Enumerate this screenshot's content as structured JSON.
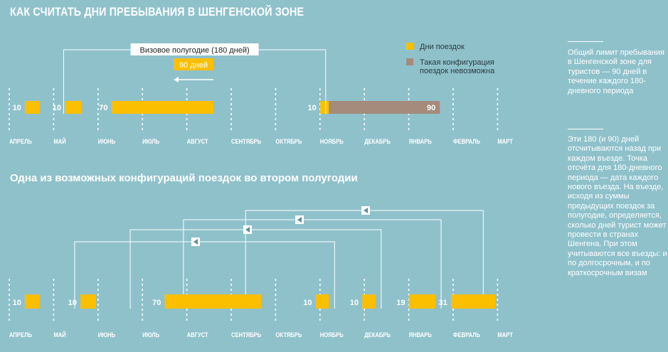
{
  "title": "КАК СЧИТАТЬ ДНИ ПРЕБЫВАНИЯ В ШЕНГЕНСКОЙ ЗОНЕ",
  "subtitle": "Одна из возможных конфигураций поездок во втором полугодии",
  "colors": {
    "background": "#8fc1cb",
    "trip": "#fcbf00",
    "impossible": "#a48b7b",
    "text": "#ffffff"
  },
  "months": [
    "АПРЕЛЬ",
    "МАЙ",
    "ИЮНЬ",
    "ИЮЛЬ",
    "АВГУСТ",
    "СЕНТЯБРЬ",
    "ОКТЯБРЬ",
    "НОЯБРЬ",
    "ДЕКАБРЬ",
    "ЯНВАРЬ",
    "ФЕВРАЛЬ",
    "МАРТ"
  ],
  "legend": {
    "trips": "Дни поездок",
    "impossible_line1": "Такая конфигурация",
    "impossible_line2": "поездок невозможна"
  },
  "top": {
    "window_label": "Визовое полугодие (180 дней)",
    "limit_label": "90 дней",
    "window_start_month": 1,
    "window_end_month": 7,
    "trips": [
      {
        "days": "10",
        "start": 0.35,
        "end": 0.68,
        "kind": "trip"
      },
      {
        "days": "10",
        "start": 1.25,
        "end": 1.62,
        "kind": "trip"
      },
      {
        "days": "70",
        "start": 2.3,
        "end": 4.6,
        "kind": "trip"
      },
      {
        "days": "10",
        "start": 7.0,
        "end": 7.2,
        "kind": "trip"
      },
      {
        "days": "90",
        "start": 7.2,
        "end": 9.7,
        "kind": "impossible"
      }
    ]
  },
  "bottom": {
    "windows": [
      {
        "start": 1.25,
        "end": 7.2
      },
      {
        "start": 2.5,
        "end": 8.25
      },
      {
        "start": 3.7,
        "end": 9.6
      },
      {
        "start": 5.1,
        "end": 10.55
      }
    ],
    "trips": [
      {
        "days": "10",
        "start": 0.35,
        "end": 0.68
      },
      {
        "days": "10",
        "start": 1.6,
        "end": 1.95
      },
      {
        "days": "70",
        "start": 3.5,
        "end": 5.67
      },
      {
        "days": "10",
        "start": 6.9,
        "end": 7.2
      },
      {
        "days": "10",
        "start": 7.95,
        "end": 8.25
      },
      {
        "days": "19",
        "start": 9.0,
        "end": 9.6
      },
      {
        "days": "31",
        "start": 9.95,
        "end": 10.95
      }
    ]
  },
  "side": {
    "p1": "Общий лимит пребывания в Шенгенской зоне для туристов — 90 дней в течение каждого 180-дневного периода",
    "p2": "Эти 180 (и 90) дней отсчитываются назад при каждом въезде. Точка отсчёта для 180-дневного периода — дата каждого нового въезда. На въезде, исходя из суммы предыдущих поездок за полугодие, определяется, сколько дней турист может провести в странах Шенгена. При этом учитываются все въезды: и по долгосрочным, и по краткосрочным визам"
  }
}
